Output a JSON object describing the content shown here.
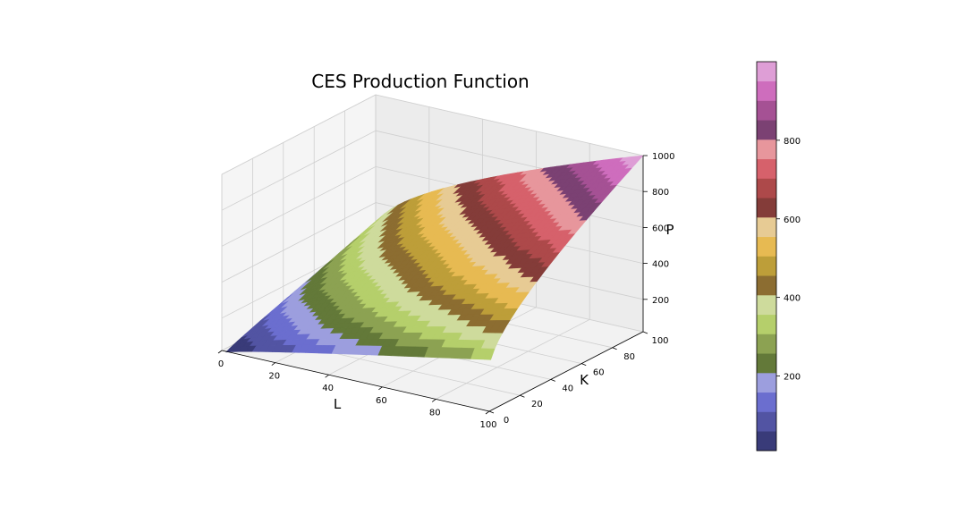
{
  "chart_data": {
    "type": "surface3d",
    "title": "CES Production Function",
    "xlabel": "L",
    "ylabel": "K",
    "zlabel": "P",
    "xlim": [
      0,
      100
    ],
    "ylim": [
      0,
      100
    ],
    "zlim": [
      20,
      1000
    ],
    "x_ticks": [
      "0",
      "20",
      "40",
      "60",
      "80",
      "100"
    ],
    "y_ticks": [
      "0",
      "20",
      "40",
      "60",
      "80",
      "100"
    ],
    "z_ticks": [
      "200",
      "400",
      "600",
      "800",
      "1000"
    ],
    "colorbar_ticks": [
      "200",
      "400",
      "600",
      "800"
    ],
    "colormap": "tab20b",
    "colors": [
      "#393b79",
      "#5254a3",
      "#6b6ecf",
      "#9c9ede",
      "#637939",
      "#8ca252",
      "#b5cf6b",
      "#cedb9c",
      "#8c6d31",
      "#bd9e39",
      "#e7ba52",
      "#e7cb94",
      "#843c39",
      "#ad494a",
      "#d6616b",
      "#e7969c",
      "#7b4173",
      "#a55194",
      "#ce6dbd",
      "#de9ed6"
    ],
    "surface": {
      "function": "P = (L^0.5 + K^0.5)^2 / 0.4",
      "L_range": [
        1,
        100
      ],
      "K_range": [
        1,
        100
      ],
      "P_min": 10,
      "P_max": 1000
    },
    "grid": true
  }
}
